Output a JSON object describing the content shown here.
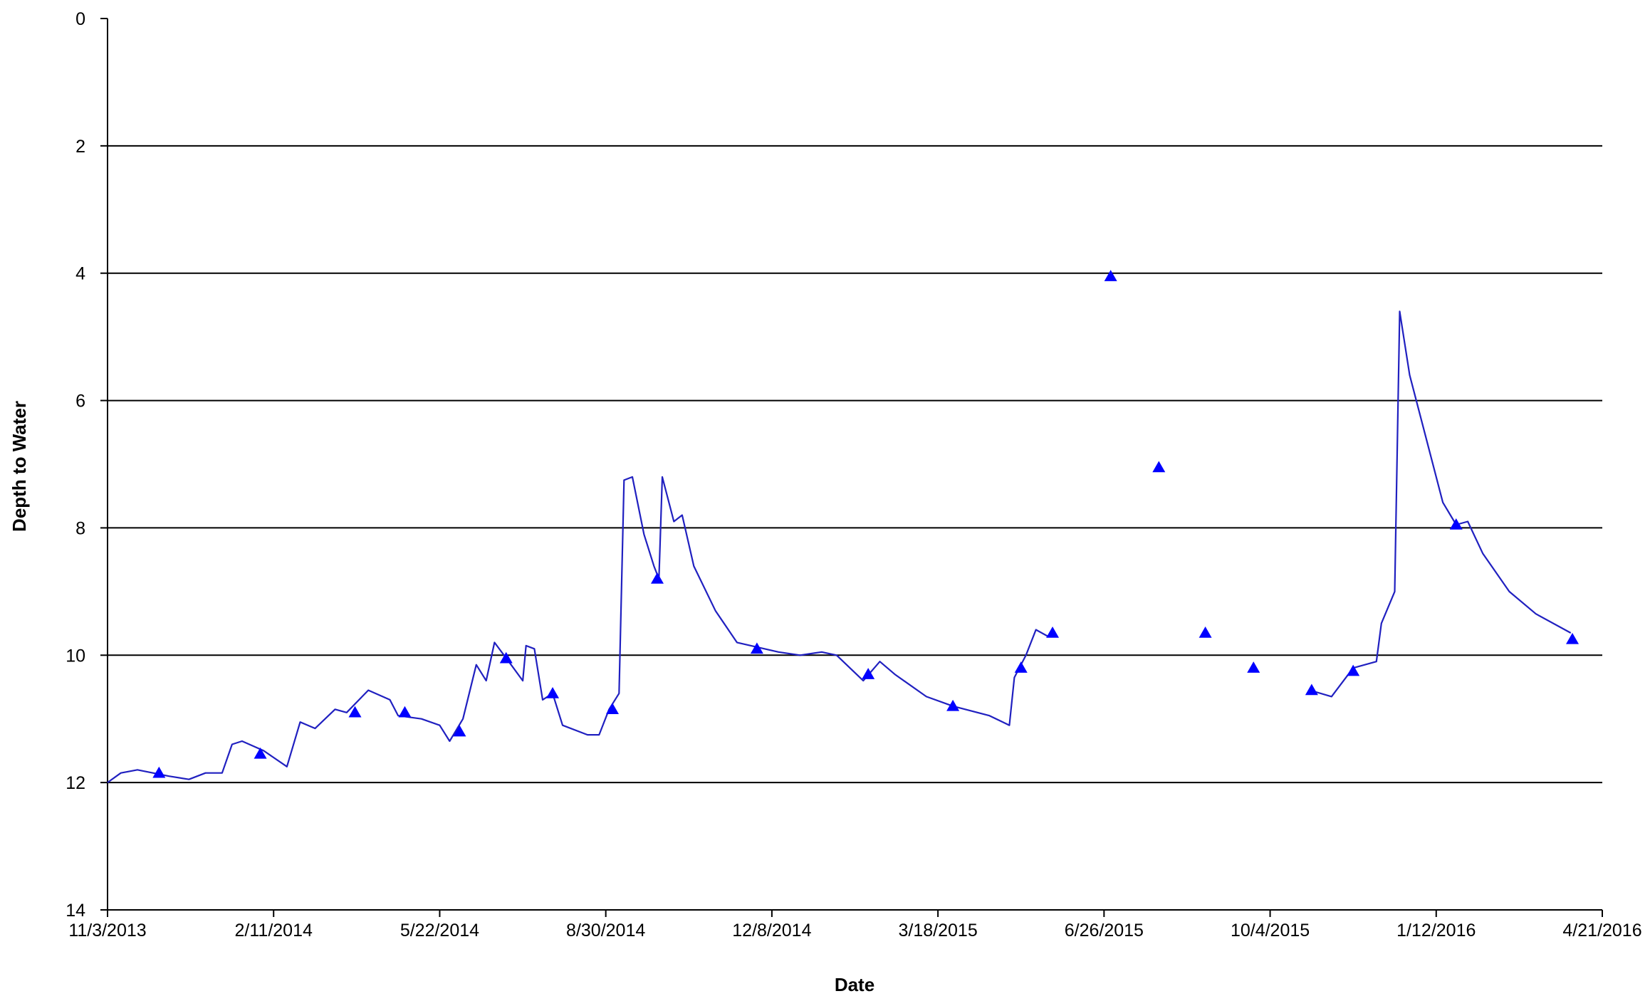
{
  "chart_data": {
    "type": "line",
    "x_label": "Date",
    "y_label": "Depth to Water",
    "ylim": [
      0,
      14
    ],
    "yticks": [
      0,
      2,
      4,
      6,
      8,
      10,
      12,
      14
    ],
    "y_inverted": true,
    "xlim": [
      "11/3/2013",
      "4/21/2016"
    ],
    "xticks": [
      "11/3/2013",
      "2/11/2014",
      "5/22/2014",
      "8/30/2014",
      "12/8/2014",
      "3/18/2015",
      "6/26/2015",
      "10/4/2015",
      "1/12/2016",
      "4/21/2016"
    ],
    "grid": true,
    "series": [
      {
        "type": "line",
        "color": "#2020c0",
        "x": [
          "11/3/2013",
          "11/11/2013",
          "11/21/2013",
          "12/10/2013",
          "12/22/2013",
          "1/1/2014",
          "1/11/2014",
          "1/17/2014",
          "1/23/2014",
          "2/5/2014",
          "2/19/2014",
          "2/27/2014",
          "3/8/2014",
          "3/20/2014",
          "3/27/2014",
          "4/9/2014",
          "4/22/2014",
          "4/27/2014",
          "5/11/2014",
          "5/22/2014",
          "5/28/2014",
          "6/5/2014",
          "6/13/2014",
          "6/19/2014",
          "6/24/2014",
          "7/4/2014",
          "7/11/2014",
          "7/13/2014",
          "7/18/2014",
          "7/23/2014",
          "7/29/2014",
          "8/4/2014",
          "8/19/2014",
          "8/26/2014",
          "9/1/2014",
          "9/7/2014",
          "9/10/2014",
          "9/15/2014",
          "9/22/2014",
          "9/28/2014",
          "10/1/2014",
          "10/3/2014",
          "10/10/2014",
          "10/15/2014",
          "10/22/2014",
          "11/4/2014",
          "11/17/2014",
          "12/12/2014",
          "12/25/2014",
          "1/7/2015",
          "1/16/2015",
          "2/1/2015",
          "2/11/2015",
          "2/20/2015",
          "3/11/2015",
          "3/27/2015",
          "4/18/2015",
          "4/30/2015",
          "5/3/2015",
          "5/10/2015",
          "5/16/2015",
          "5/23/2015",
          "8/1/2015",
          "10/28/2015",
          "11/10/2015",
          "11/23/2015",
          "12/7/2015",
          "12/10/2015",
          "12/18/2015",
          "12/21/2015",
          "12/27/2015",
          "1/6/2016",
          "1/16/2016",
          "1/24/2016",
          "1/31/2016",
          "2/9/2016",
          "2/25/2016",
          "3/12/2016",
          "4/2/2016"
        ],
        "values": [
          12.0,
          11.85,
          11.8,
          11.9,
          11.95,
          11.85,
          11.85,
          11.4,
          11.35,
          11.5,
          11.75,
          11.05,
          11.15,
          10.85,
          10.9,
          10.55,
          10.7,
          10.95,
          11.0,
          11.1,
          11.35,
          11.0,
          10.15,
          10.4,
          9.8,
          10.15,
          10.4,
          9.85,
          9.9,
          10.7,
          10.6,
          11.1,
          11.25,
          11.25,
          10.85,
          10.6,
          7.25,
          7.2,
          8.1,
          8.6,
          8.8,
          7.2,
          7.9,
          7.8,
          8.6,
          9.3,
          9.8,
          9.95,
          10.0,
          9.95,
          10.0,
          10.4,
          10.1,
          10.3,
          10.65,
          10.8,
          10.95,
          11.1,
          10.35,
          10.0,
          9.6,
          9.7,
          null,
          10.55,
          10.65,
          10.2,
          10.1,
          9.5,
          9.0,
          4.6,
          5.6,
          6.6,
          7.6,
          7.95,
          7.9,
          8.4,
          9.0,
          9.35,
          9.65
        ]
      },
      {
        "type": "scatter",
        "marker": "triangle",
        "color": "#0000ff",
        "x": [
          "12/4/2013",
          "2/3/2014",
          "4/1/2014",
          "5/1/2014",
          "6/3/2014",
          "7/1/2014",
          "7/29/2014",
          "9/3/2014",
          "9/30/2014",
          "11/29/2014",
          "2/4/2015",
          "3/27/2015",
          "5/7/2015",
          "5/26/2015",
          "6/30/2015",
          "7/29/2015",
          "8/26/2015",
          "9/24/2015",
          "10/29/2015",
          "11/23/2015",
          "1/24/2016",
          "4/3/2016"
        ],
        "values": [
          11.85,
          11.55,
          10.9,
          10.9,
          11.2,
          10.05,
          10.6,
          10.85,
          8.8,
          9.9,
          10.3,
          10.8,
          10.2,
          9.65,
          4.05,
          7.05,
          9.65,
          10.2,
          10.55,
          10.25,
          7.95,
          9.75
        ]
      }
    ]
  }
}
